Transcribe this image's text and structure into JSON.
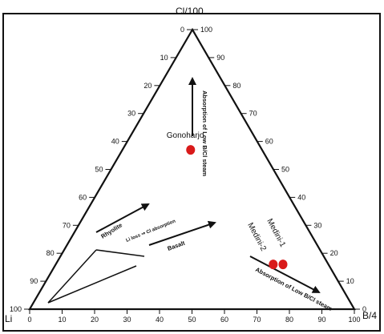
{
  "chart_data": {
    "type": "scatter",
    "kind": "ternary",
    "apex_labels": {
      "top": "Cl/100",
      "left": "Li",
      "right": "B/4"
    },
    "tick_values": [
      0,
      10,
      20,
      30,
      40,
      50,
      60,
      70,
      80,
      90,
      100
    ],
    "grid": false,
    "points": [
      {
        "label": "Gonoharjo",
        "cl": 57,
        "b": 21,
        "li": 22
      },
      {
        "label": "Medini-1",
        "cl": 16,
        "b": 70,
        "li": 14
      },
      {
        "label": "Medini-2",
        "cl": 16,
        "b": 67,
        "li": 17
      }
    ],
    "point_color": "#d91a1a",
    "annotations": {
      "arrow_up": "Absorption of Low B/Cl steam",
      "arrow_right": "Absorption of Low B/Cl steam",
      "rhyolite": "Rhyolite",
      "basalt": "Basalt",
      "li_loss": "Li loss ⇒ Cl absorption"
    }
  }
}
